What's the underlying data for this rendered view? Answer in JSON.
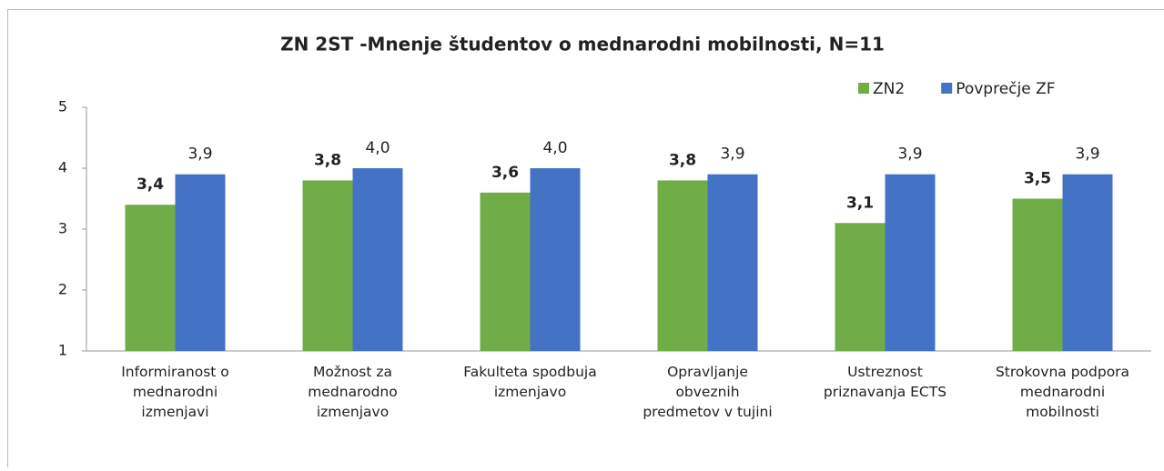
{
  "chart_data": {
    "type": "bar",
    "title": "ZN 2ST -Mnenje študentov o mednarodni mobilnosti, N=11",
    "categories": [
      "Informiranost o\nmednarodni\nizmenjavi",
      "Možnost za\nmednarodno\nizmenjavo",
      "Fakulteta spodbuja\nizmenjavo",
      "Opravljanje\nobveznih\npredmetov v tujini",
      "Ustreznost\npriznavanja ECTS",
      "Strokovna podpora\nmednarodni\nmobilnosti"
    ],
    "series": [
      {
        "name": "ZN2",
        "color": "#70ad47",
        "bold": true,
        "values": [
          3.4,
          3.8,
          3.6,
          3.8,
          3.1,
          3.5
        ],
        "value_labels": [
          "3,4",
          "3,8",
          "3,6",
          "3,8",
          "3,1",
          "3,5"
        ]
      },
      {
        "name": "Povprečje ZF",
        "color": "#4472c4",
        "bold": false,
        "values": [
          3.9,
          4.0,
          4.0,
          3.9,
          3.9,
          3.9
        ],
        "value_labels": [
          "3,9",
          "4,0",
          "4,0",
          "3,9",
          "3,9",
          "3,9"
        ]
      }
    ],
    "ylim": [
      1,
      5
    ],
    "yticks": [
      1,
      2,
      3,
      4,
      5
    ],
    "grid": false,
    "legend": "top-right"
  }
}
